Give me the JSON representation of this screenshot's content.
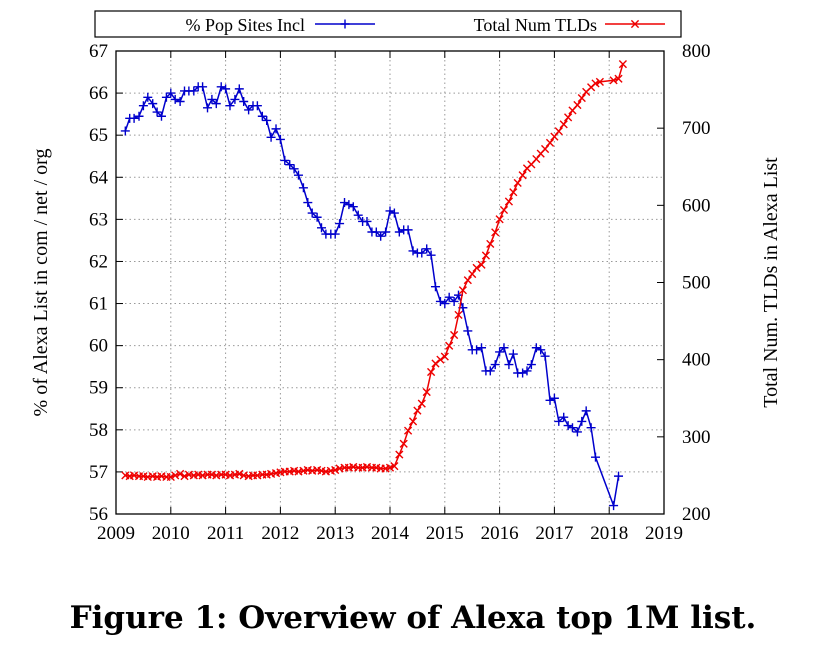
{
  "caption": "Figure 1: Overview of Alexa top 1M list.",
  "chart_data": {
    "type": "line",
    "title": "",
    "xlabel": "",
    "xlim": [
      2009,
      2019
    ],
    "x_ticks": [
      2009,
      2010,
      2011,
      2012,
      2013,
      2014,
      2015,
      2016,
      2017,
      2018,
      2019
    ],
    "ylabel": "% of Alexa List in com / net / org",
    "ylim": [
      56,
      67
    ],
    "y_ticks": [
      56,
      57,
      58,
      59,
      60,
      61,
      62,
      63,
      64,
      65,
      66,
      67
    ],
    "y2label": "Total Num. TLDs in Alexa List",
    "y2lim": [
      200,
      800
    ],
    "y2_ticks": [
      200,
      300,
      400,
      500,
      600,
      700,
      800
    ],
    "grid": true,
    "legend_position": "top",
    "series": [
      {
        "name": "% Pop Sites Incl",
        "axis": "left",
        "color": "#0000cc",
        "marker": "plus",
        "x": [
          2009.17,
          2009.25,
          2009.33,
          2009.42,
          2009.5,
          2009.58,
          2009.67,
          2009.75,
          2009.83,
          2009.92,
          2010.0,
          2010.08,
          2010.17,
          2010.25,
          2010.33,
          2010.42,
          2010.5,
          2010.58,
          2010.67,
          2010.75,
          2010.83,
          2010.92,
          2011.0,
          2011.08,
          2011.17,
          2011.25,
          2011.33,
          2011.42,
          2011.5,
          2011.58,
          2011.67,
          2011.75,
          2011.83,
          2011.92,
          2012.0,
          2012.08,
          2012.17,
          2012.25,
          2012.33,
          2012.42,
          2012.5,
          2012.58,
          2012.67,
          2012.75,
          2012.83,
          2012.92,
          2013.0,
          2013.08,
          2013.17,
          2013.25,
          2013.33,
          2013.42,
          2013.5,
          2013.58,
          2013.67,
          2013.75,
          2013.83,
          2013.92,
          2014.0,
          2014.08,
          2014.17,
          2014.25,
          2014.33,
          2014.42,
          2014.5,
          2014.58,
          2014.67,
          2014.75,
          2014.83,
          2014.92,
          2015.0,
          2015.08,
          2015.17,
          2015.25,
          2015.33,
          2015.42,
          2015.5,
          2015.58,
          2015.67,
          2015.75,
          2015.83,
          2015.92,
          2016.0,
          2016.08,
          2016.17,
          2016.25,
          2016.33,
          2016.42,
          2016.5,
          2016.58,
          2016.67,
          2016.75,
          2016.83,
          2016.92,
          2017.0,
          2017.08,
          2017.17,
          2017.25,
          2017.33,
          2017.42,
          2017.5,
          2017.58,
          2017.67,
          2017.75,
          2018.08,
          2018.17
        ],
        "values": [
          65.1,
          65.4,
          65.4,
          65.45,
          65.7,
          65.9,
          65.75,
          65.55,
          65.45,
          65.9,
          66.0,
          65.85,
          65.8,
          66.05,
          66.05,
          66.05,
          66.15,
          66.15,
          65.65,
          65.85,
          65.75,
          66.15,
          66.1,
          65.7,
          65.85,
          66.1,
          65.8,
          65.6,
          65.7,
          65.7,
          65.45,
          65.35,
          64.95,
          65.15,
          64.9,
          64.4,
          64.3,
          64.2,
          64.05,
          63.75,
          63.4,
          63.15,
          63.05,
          62.8,
          62.65,
          62.65,
          62.65,
          62.9,
          63.4,
          63.35,
          63.3,
          63.1,
          62.95,
          62.95,
          62.7,
          62.7,
          62.6,
          62.7,
          63.2,
          63.15,
          62.7,
          62.75,
          62.75,
          62.25,
          62.2,
          62.2,
          62.3,
          62.15,
          61.4,
          61.05,
          61.0,
          61.15,
          61.05,
          61.2,
          60.9,
          60.35,
          59.9,
          59.9,
          59.95,
          59.4,
          59.4,
          59.55,
          59.85,
          59.95,
          59.55,
          59.8,
          59.35,
          59.35,
          59.4,
          59.55,
          59.95,
          59.9,
          59.75,
          58.7,
          58.75,
          58.2,
          58.3,
          58.1,
          58.05,
          57.95,
          58.2,
          58.45,
          58.05,
          57.35,
          56.2,
          56.9
        ]
      },
      {
        "name": "Total Num TLDs",
        "axis": "right",
        "color": "#ee0000",
        "marker": "x",
        "x": [
          2009.17,
          2009.25,
          2009.33,
          2009.42,
          2009.5,
          2009.58,
          2009.67,
          2009.75,
          2009.83,
          2009.92,
          2010.0,
          2010.08,
          2010.17,
          2010.25,
          2010.33,
          2010.42,
          2010.5,
          2010.58,
          2010.67,
          2010.75,
          2010.83,
          2010.92,
          2011.0,
          2011.08,
          2011.17,
          2011.25,
          2011.33,
          2011.42,
          2011.5,
          2011.58,
          2011.67,
          2011.75,
          2011.83,
          2011.92,
          2012.0,
          2012.08,
          2012.17,
          2012.25,
          2012.33,
          2012.42,
          2012.5,
          2012.58,
          2012.67,
          2012.75,
          2012.83,
          2012.92,
          2013.0,
          2013.08,
          2013.17,
          2013.25,
          2013.33,
          2013.42,
          2013.5,
          2013.58,
          2013.67,
          2013.75,
          2013.83,
          2013.92,
          2014.0,
          2014.08,
          2014.17,
          2014.25,
          2014.33,
          2014.42,
          2014.5,
          2014.58,
          2014.67,
          2014.75,
          2014.83,
          2014.92,
          2015.0,
          2015.08,
          2015.17,
          2015.25,
          2015.33,
          2015.42,
          2015.5,
          2015.58,
          2015.67,
          2015.75,
          2015.83,
          2015.92,
          2016.0,
          2016.08,
          2016.17,
          2016.25,
          2016.33,
          2016.42,
          2016.5,
          2016.58,
          2016.67,
          2016.75,
          2016.83,
          2016.92,
          2017.0,
          2017.08,
          2017.17,
          2017.25,
          2017.33,
          2017.42,
          2017.5,
          2017.58,
          2017.67,
          2017.75,
          2017.83,
          2018.08,
          2018.17,
          2018.25
        ],
        "values": [
          250,
          249,
          250,
          249,
          249,
          248,
          249,
          248,
          249,
          248,
          248,
          250,
          252,
          249,
          251,
          250,
          251,
          250,
          251,
          251,
          250,
          251,
          251,
          250,
          251,
          252,
          250,
          249,
          250,
          250,
          251,
          251,
          252,
          253,
          254,
          255,
          255,
          256,
          255,
          256,
          257,
          256,
          257,
          256,
          255,
          256,
          257,
          259,
          260,
          260,
          261,
          260,
          260,
          261,
          260,
          260,
          259,
          259,
          260,
          262,
          277,
          291,
          308,
          320,
          334,
          343,
          358,
          384,
          395,
          400,
          404,
          418,
          432,
          458,
          490,
          503,
          511,
          519,
          523,
          535,
          550,
          565,
          582,
          594,
          605,
          617,
          629,
          639,
          648,
          653,
          660,
          667,
          673,
          681,
          689,
          696,
          705,
          714,
          723,
          730,
          739,
          747,
          753,
          758,
          760,
          762,
          764,
          783
        ]
      }
    ]
  }
}
